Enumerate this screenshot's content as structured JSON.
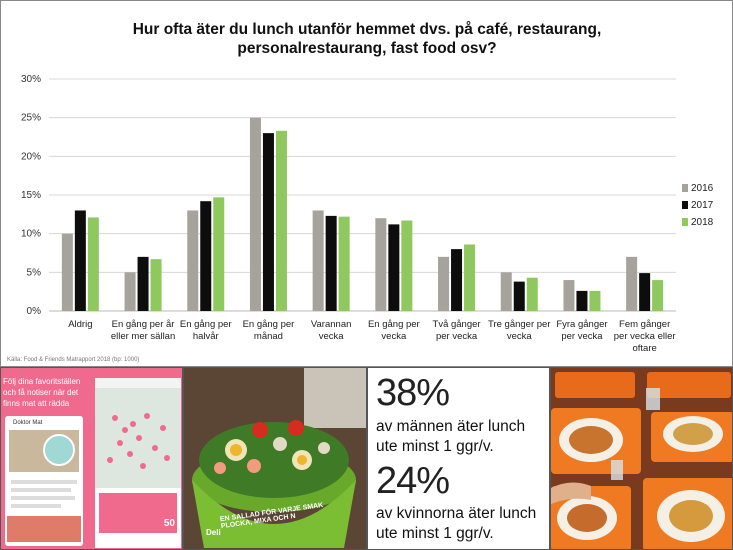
{
  "chart_data": {
    "type": "bar",
    "title_lines": [
      "Hur ofta äter du lunch utanför hemmet dvs. på café, restaurang,",
      "personalrestaurang, fast food osv?"
    ],
    "categories": [
      [
        "Aldrig"
      ],
      [
        "En gång per år",
        "eller mer sällan"
      ],
      [
        "En gång per",
        "halvår"
      ],
      [
        "En gång per",
        "månad"
      ],
      [
        "Varannan",
        "vecka"
      ],
      [
        "En gång per",
        "vecka"
      ],
      [
        "Två gånger",
        "per vecka"
      ],
      [
        "Tre gånger per",
        "vecka"
      ],
      [
        "Fyra gånger",
        "per vecka"
      ],
      [
        "Fem gånger",
        "per vecka eller",
        "oftare"
      ]
    ],
    "series": [
      {
        "name": "2016",
        "color": "#a5a39b",
        "values": [
          10,
          5,
          13,
          25,
          13,
          12,
          7,
          5,
          4,
          7
        ]
      },
      {
        "name": "2017",
        "color": "#0d0d0d",
        "values": [
          13,
          7,
          14.2,
          23,
          12.3,
          11.2,
          8,
          3.8,
          2.6,
          4.9
        ]
      },
      {
        "name": "2018",
        "color": "#8fc85f",
        "values": [
          12.1,
          6.7,
          14.7,
          23.3,
          12.2,
          11.7,
          8.6,
          4.3,
          2.6,
          4
        ]
      }
    ],
    "yticks": [
      "0%",
      "5%",
      "10%",
      "15%",
      "20%",
      "25%",
      "30%"
    ],
    "ylim": [
      0,
      30
    ],
    "legend_position": "right",
    "source": "Källa: Food & Friends Matrapport 2018 (bp: 1000)"
  },
  "phone": {
    "header": "Följ dina favoritställen och få notiser när det finns mat att rädda",
    "card_title": "Doktor Mat",
    "price": "50"
  },
  "salad": {
    "bowl_text": "EN SALLAD FÖR VARJE SMAK PLOCKA, MIXA OCH N",
    "brand": "Deli"
  },
  "stats": {
    "men_percent": "38%",
    "men_line1": "av männen äter lunch",
    "men_line2": "ute minst 1 ggr/v.",
    "women_percent": "24%",
    "women_line1": "av kvinnorna äter lunch",
    "women_line2": "ute minst 1 ggr/v."
  }
}
